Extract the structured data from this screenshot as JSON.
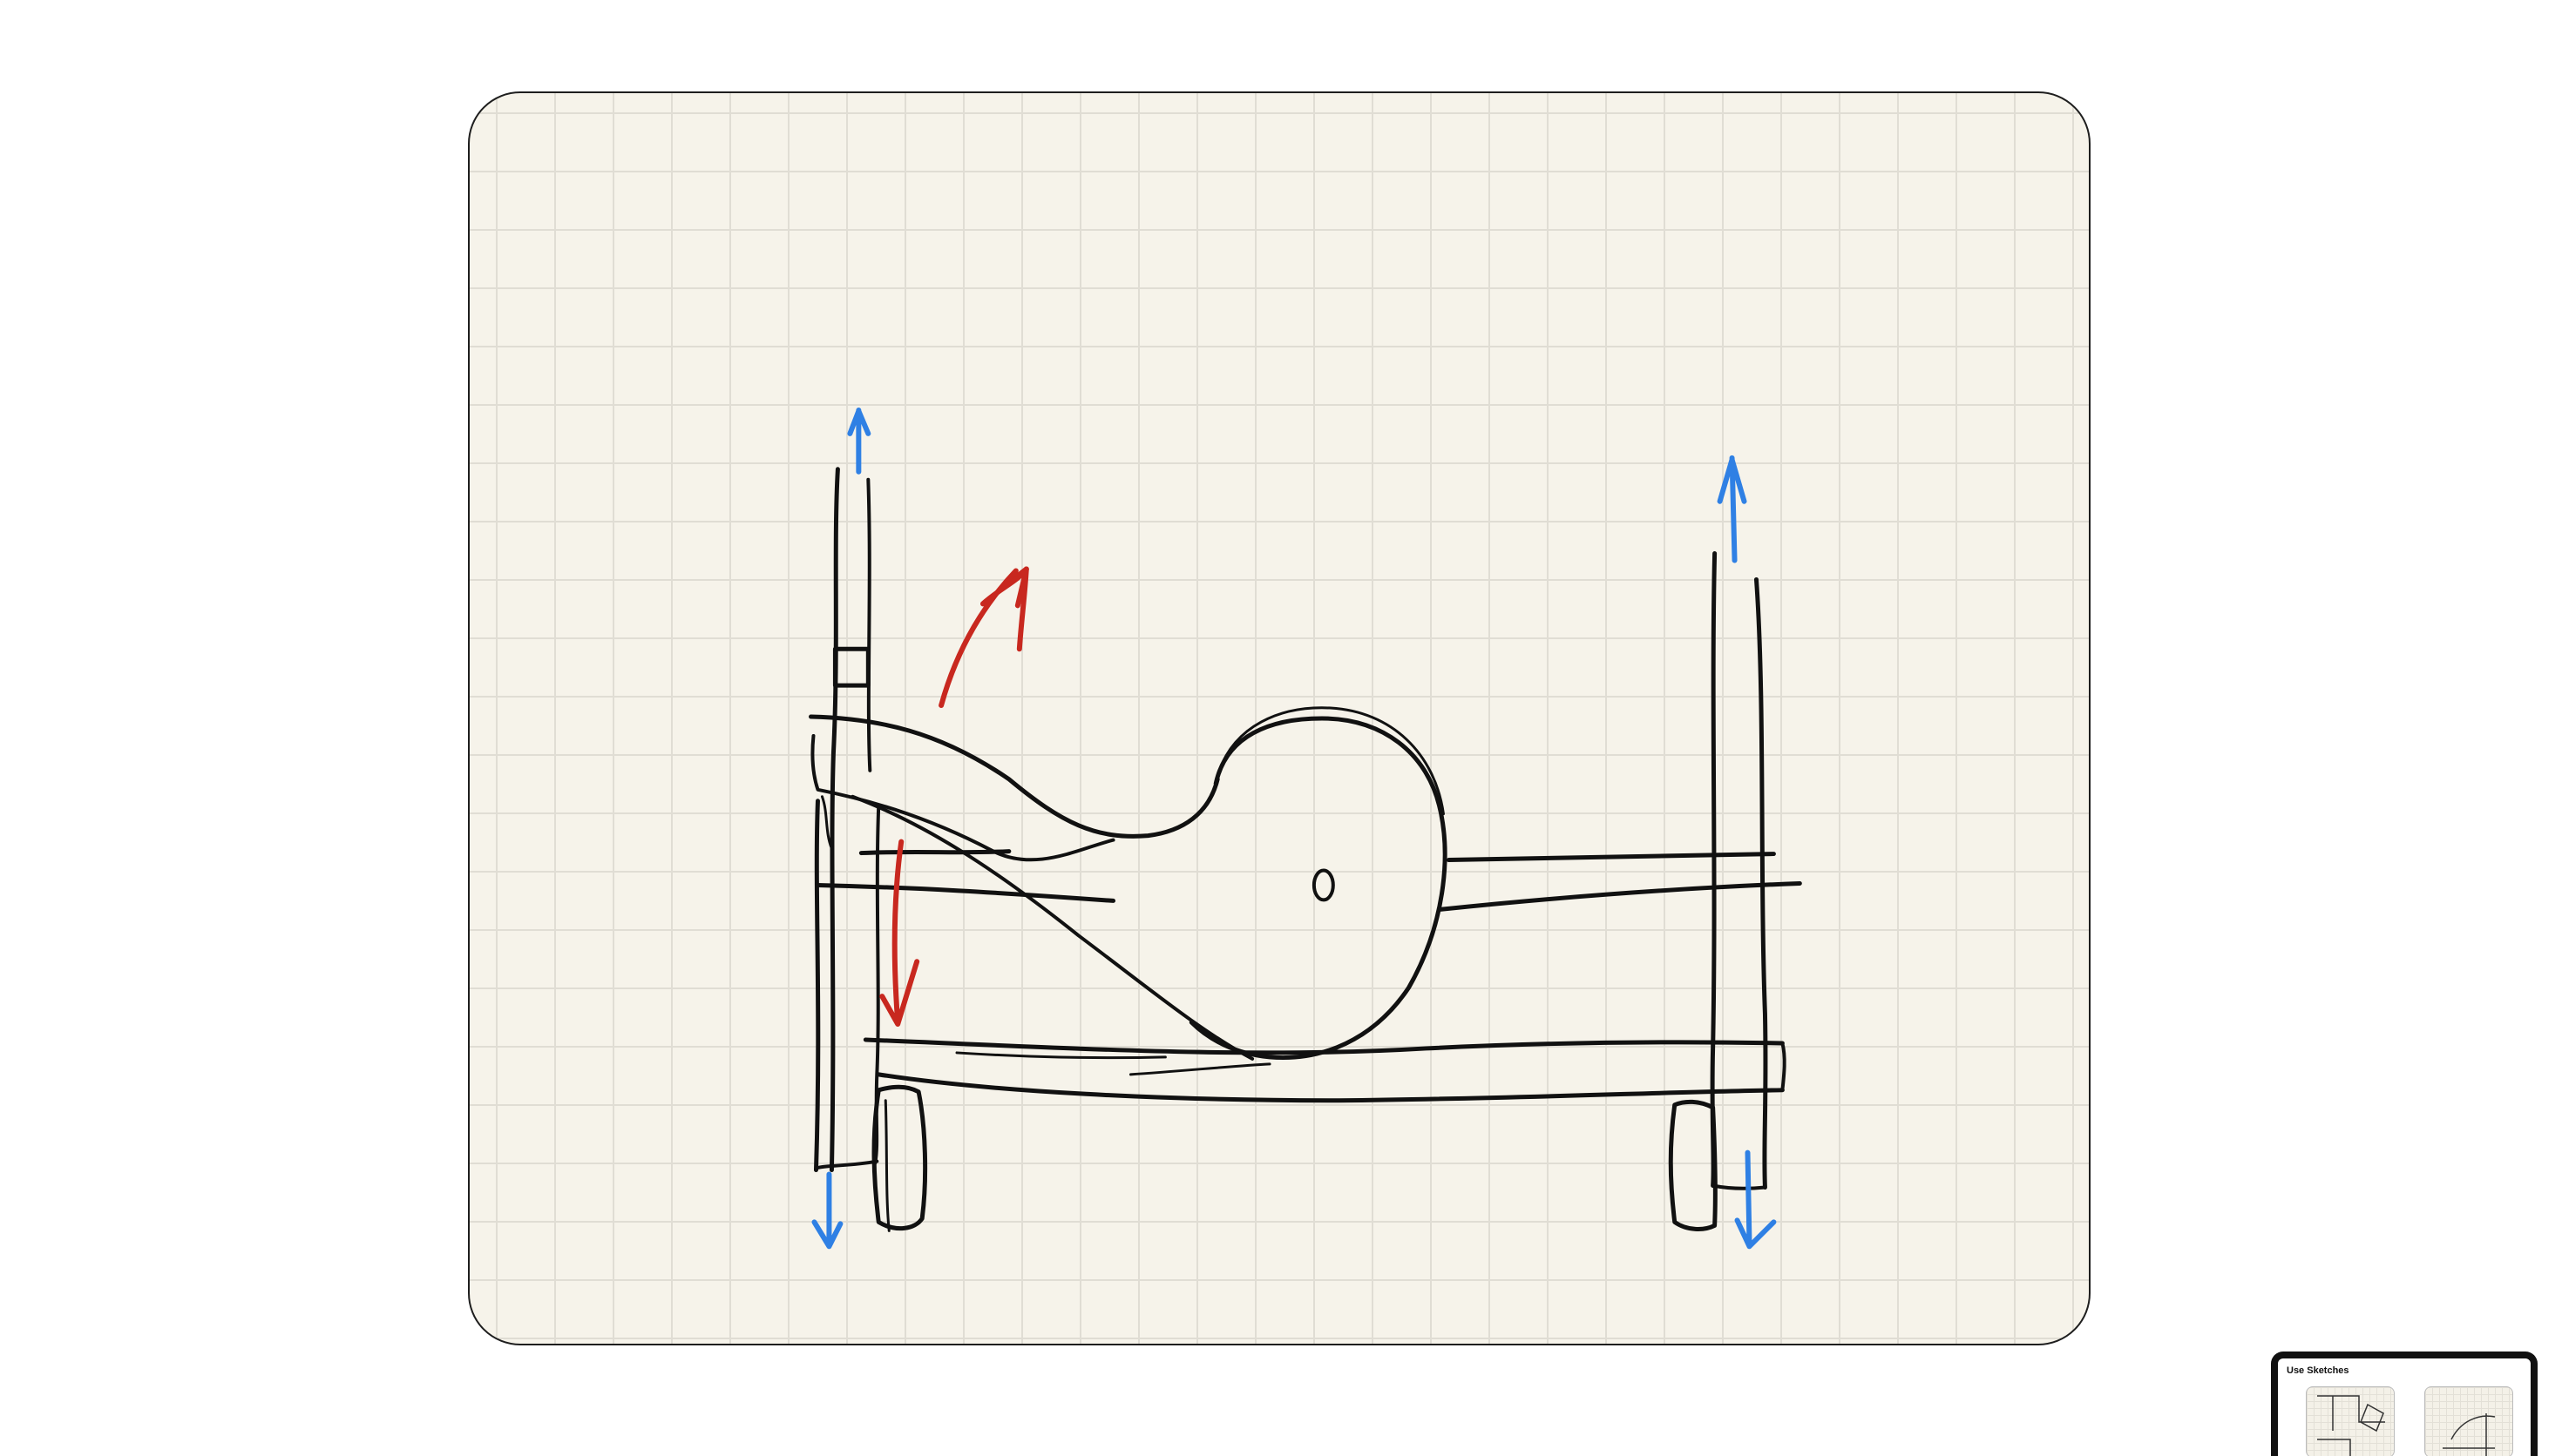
{
  "preview": {
    "title": "Use Sketches"
  },
  "colors": {
    "paper": "#f6f3ea",
    "grid": "#e0ddd4",
    "ink": "#111111",
    "blue_arrows": "#2f80e4",
    "red_arrows": "#c8281f"
  }
}
